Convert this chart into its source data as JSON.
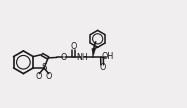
{
  "bg_color": "#f0eeee",
  "line_color": "#1a1a1a",
  "line_width": 1.1,
  "font_size": 5.8,
  "figsize": [
    1.87,
    1.08
  ],
  "dpi": 100,
  "xlim": [
    0,
    18
  ],
  "ylim": [
    0,
    10
  ]
}
